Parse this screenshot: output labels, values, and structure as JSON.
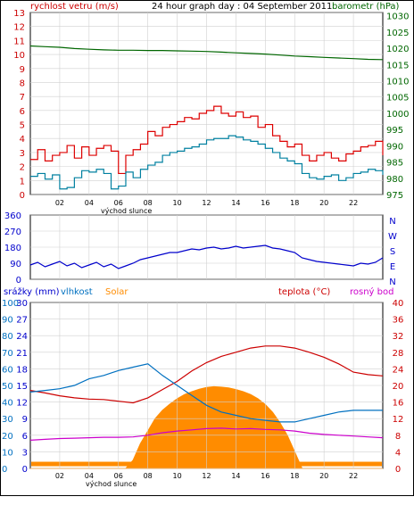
{
  "chart_data": [
    {
      "type": "line",
      "title": "24 hour graph day : 04 September 2011",
      "left_label": "rychlost vetru (m/s)",
      "right_label": "barometr (hPa)",
      "x_tick_labels": [
        "02",
        "04",
        "06",
        "08",
        "10",
        "12",
        "14",
        "16",
        "18",
        "20",
        "22"
      ],
      "x_caption": "východ slunce",
      "left_ticks": [
        "0",
        "1",
        "2",
        "3",
        "4",
        "5",
        "6",
        "7",
        "8",
        "9",
        "10",
        "11",
        "12",
        "13"
      ],
      "right_ticks": [
        "975",
        "980",
        "985",
        "990",
        "995",
        "1000",
        "1005",
        "1010",
        "1015",
        "1020",
        "1025",
        "1030"
      ],
      "xlim": [
        0,
        24
      ],
      "ylim_left": [
        0,
        13
      ],
      "ylim_right": [
        975,
        1031
      ],
      "colors": {
        "gust": "#dd0000",
        "wind": "#0080a0",
        "pressure": "#006600",
        "title": "#000000",
        "left_label": "#cc0000",
        "right_label": "#006600"
      },
      "series": [
        {
          "key": "gust",
          "x": [
            0,
            0.5,
            1,
            1.5,
            2,
            2.5,
            3,
            3.5,
            4,
            4.5,
            5,
            5.5,
            6,
            6.5,
            7,
            7.5,
            8,
            8.5,
            9,
            9.5,
            10,
            10.5,
            11,
            11.5,
            12,
            12.5,
            13,
            13.5,
            14,
            14.5,
            15,
            15.5,
            16,
            16.5,
            17,
            17.5,
            18,
            18.5,
            19,
            19.5,
            20,
            20.5,
            21,
            21.5,
            22,
            22.5,
            23,
            23.5,
            24
          ],
          "values": [
            2.5,
            3.2,
            2.4,
            2.8,
            3.0,
            3.5,
            2.6,
            3.4,
            2.8,
            3.3,
            3.5,
            3.1,
            1.5,
            2.8,
            3.2,
            3.6,
            4.5,
            4.2,
            4.8,
            5.0,
            5.2,
            5.5,
            5.4,
            5.8,
            6.0,
            6.3,
            5.8,
            5.6,
            5.9,
            5.5,
            5.6,
            4.8,
            5.0,
            4.2,
            3.8,
            3.4,
            3.6,
            2.8,
            2.4,
            2.8,
            3.0,
            2.6,
            2.4,
            2.9,
            3.1,
            3.4,
            3.5,
            3.8,
            2.8
          ]
        },
        {
          "key": "wind",
          "x": [
            0,
            0.5,
            1,
            1.5,
            2,
            2.5,
            3,
            3.5,
            4,
            4.5,
            5,
            5.5,
            6,
            6.5,
            7,
            7.5,
            8,
            8.5,
            9,
            9.5,
            10,
            10.5,
            11,
            11.5,
            12,
            12.5,
            13,
            13.5,
            14,
            14.5,
            15,
            15.5,
            16,
            16.5,
            17,
            17.5,
            18,
            18.5,
            19,
            19.5,
            20,
            20.5,
            21,
            21.5,
            22,
            22.5,
            23,
            23.5,
            24
          ],
          "values": [
            1.3,
            1.5,
            1.1,
            1.4,
            0.4,
            0.5,
            1.2,
            1.7,
            1.6,
            1.8,
            1.5,
            0.4,
            0.6,
            1.6,
            1.2,
            1.8,
            2.1,
            2.3,
            2.8,
            3.0,
            3.1,
            3.3,
            3.4,
            3.6,
            3.9,
            4.0,
            4.0,
            4.2,
            4.1,
            3.9,
            3.8,
            3.6,
            3.3,
            3.0,
            2.6,
            2.4,
            2.2,
            1.5,
            1.2,
            1.1,
            1.3,
            1.4,
            1.0,
            1.2,
            1.5,
            1.6,
            1.8,
            1.7,
            1.4
          ]
        },
        {
          "key": "pressure",
          "x": [
            0,
            1,
            2,
            3,
            4,
            5,
            6,
            7,
            8,
            9,
            10,
            11,
            12,
            13,
            14,
            15,
            16,
            17,
            18,
            19,
            20,
            21,
            22,
            23,
            24
          ],
          "values": [
            1020.7,
            1020.5,
            1020.3,
            1019.9,
            1019.7,
            1019.5,
            1019.4,
            1019.4,
            1019.3,
            1019.3,
            1019.2,
            1019.1,
            1019.0,
            1018.8,
            1018.6,
            1018.4,
            1018.2,
            1017.9,
            1017.6,
            1017.4,
            1017.2,
            1017.0,
            1016.8,
            1016.6,
            1016.5
          ]
        }
      ]
    },
    {
      "type": "line",
      "side_labels": [
        "N",
        "W",
        "S",
        "E",
        "N"
      ],
      "left_ticks": [
        "0",
        "90",
        "180",
        "270",
        "360"
      ],
      "ylim": [
        0,
        360
      ],
      "xlim": [
        0,
        24
      ],
      "color": "#0000cc",
      "series": [
        {
          "key": "direction",
          "x": [
            0,
            0.5,
            1,
            1.5,
            2,
            2.5,
            3,
            3.5,
            4,
            4.5,
            5,
            5.5,
            6,
            6.5,
            7,
            7.5,
            8,
            8.5,
            9,
            9.5,
            10,
            10.5,
            11,
            11.5,
            12,
            12.5,
            13,
            13.5,
            14,
            14.5,
            15,
            15.5,
            16,
            16.5,
            17,
            17.5,
            18,
            18.5,
            19,
            19.5,
            20,
            20.5,
            21,
            21.5,
            22,
            22.5,
            23,
            23.5,
            24
          ],
          "values": [
            80,
            95,
            70,
            85,
            100,
            75,
            90,
            65,
            80,
            95,
            70,
            85,
            60,
            75,
            90,
            110,
            120,
            130,
            140,
            150,
            150,
            160,
            170,
            165,
            175,
            180,
            170,
            175,
            185,
            175,
            180,
            185,
            190,
            175,
            170,
            160,
            150,
            120,
            110,
            100,
            95,
            90,
            85,
            80,
            75,
            90,
            85,
            95,
            120
          ]
        }
      ]
    },
    {
      "type": "area",
      "labels": {
        "rain": "srážky (mm)",
        "humidity": "vlhkost",
        "solar": "Solar",
        "temp": "teplota (°C)",
        "dew": "rosný bod"
      },
      "colors": {
        "rain": "#0000cc",
        "humidity": "#0070c0",
        "solar": "#ff8c00",
        "temp": "#cc0000",
        "dew": "#cc00cc"
      },
      "left_ticks_rain": [
        "0",
        "3",
        "6",
        "9",
        "12",
        "15",
        "18",
        "21",
        "24",
        "27",
        "30"
      ],
      "left_ticks_humidity": [
        "0",
        "10",
        "20",
        "30",
        "40",
        "50",
        "60",
        "70",
        "80",
        "90",
        "100"
      ],
      "temp_ticks": [
        "0",
        "4",
        "8",
        "12",
        "16",
        "20",
        "24",
        "28",
        "32",
        "36",
        "40"
      ],
      "xlim": [
        0,
        24
      ],
      "ylim_humidity": [
        0,
        100
      ],
      "ylim_temp": [
        0,
        40
      ],
      "x_tick_labels": [
        "02",
        "04",
        "06",
        "08",
        "10",
        "12",
        "14",
        "16",
        "18",
        "20",
        "22"
      ],
      "x_caption": "východ slunce",
      "series": [
        {
          "key": "temp",
          "x": [
            0,
            1,
            2,
            3,
            4,
            5,
            6,
            7,
            8,
            9,
            10,
            11,
            12,
            13,
            14,
            15,
            16,
            17,
            18,
            19,
            20,
            21,
            22,
            23,
            24
          ],
          "values": [
            18.8,
            18.2,
            17.5,
            17.0,
            16.7,
            16.6,
            16.2,
            15.8,
            17.0,
            19.0,
            21.0,
            23.5,
            25.5,
            27.0,
            28.0,
            29.0,
            29.5,
            29.5,
            29.0,
            28.0,
            26.8,
            25.2,
            23.2,
            22.6,
            22.3
          ]
        },
        {
          "key": "humidity",
          "x": [
            0,
            1,
            2,
            3,
            4,
            5,
            6,
            7,
            8,
            9,
            10,
            11,
            12,
            13,
            14,
            15,
            16,
            17,
            18,
            19,
            20,
            21,
            22,
            23,
            24
          ],
          "values": [
            46,
            47,
            48,
            50,
            54,
            56,
            59,
            61,
            63,
            56,
            50,
            44,
            38,
            34,
            32,
            30,
            29,
            28,
            28,
            30,
            32,
            34,
            35,
            35,
            35
          ]
        },
        {
          "key": "dew",
          "x": [
            0,
            1,
            2,
            3,
            4,
            5,
            6,
            7,
            8,
            9,
            10,
            11,
            12,
            13,
            14,
            15,
            16,
            17,
            18,
            19,
            20,
            21,
            22,
            23,
            24
          ],
          "values": [
            6.8,
            7.0,
            7.2,
            7.3,
            7.4,
            7.5,
            7.5,
            7.6,
            8.0,
            8.6,
            9.0,
            9.3,
            9.6,
            9.7,
            9.5,
            9.6,
            9.4,
            9.3,
            9.0,
            8.5,
            8.2,
            8.0,
            7.8,
            7.6,
            7.4
          ]
        },
        {
          "key": "solar",
          "x": [
            0,
            6.5,
            7,
            7.5,
            8,
            8.5,
            9,
            9.5,
            10,
            10.5,
            11,
            11.5,
            12,
            12.5,
            13,
            13.5,
            14,
            14.5,
            15,
            15.5,
            16,
            16.5,
            17,
            17.5,
            18,
            18.5,
            24
          ],
          "values": [
            0,
            0,
            2,
            6,
            9,
            12,
            14,
            15.5,
            16.8,
            17.8,
            18.5,
            19.1,
            19.5,
            19.7,
            19.6,
            19.4,
            19.0,
            18.5,
            17.8,
            16.8,
            15.4,
            13.5,
            11,
            8,
            4,
            0,
            0
          ]
        },
        {
          "key": "rain_baseline",
          "x": [
            0,
            24
          ],
          "values": [
            0.4,
            0.4
          ]
        }
      ]
    }
  ]
}
